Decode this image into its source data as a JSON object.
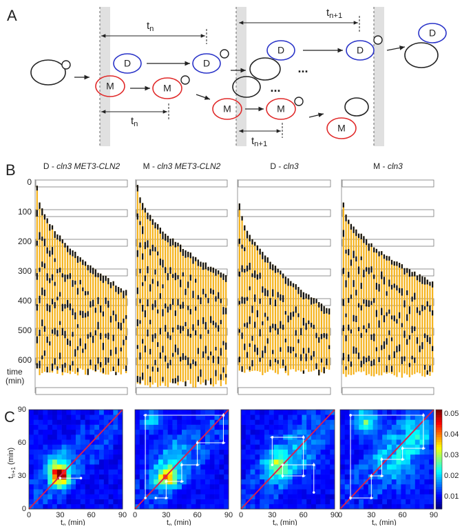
{
  "panel_a": {
    "label": "A",
    "intervals": [
      {
        "base": "t",
        "sub": "n"
      },
      {
        "base": "t",
        "sub": "n+1"
      },
      {
        "base": "t",
        "sub": "n"
      },
      {
        "base": "t",
        "sub": "n+1"
      }
    ],
    "daughter_labels": [
      "D",
      "D",
      "D",
      "D",
      "D"
    ],
    "mother_labels": [
      "M",
      "M",
      "M",
      "M",
      "M"
    ],
    "continuation_marks": [
      "...",
      "..."
    ]
  },
  "panel_b": {
    "label": "B",
    "strains": [
      {
        "prefix": "D - ",
        "italic": "cln3 MET3-CLN2"
      },
      {
        "prefix": "M - ",
        "italic": "cln3 MET3-CLN2"
      },
      {
        "prefix": "D - ",
        "italic": "cln3"
      },
      {
        "prefix": "M - ",
        "italic": "cln3"
      }
    ],
    "yticks": [
      "0",
      "100",
      "200",
      "300",
      "400",
      "500",
      "600"
    ],
    "ylabel": [
      "time",
      "(min)"
    ]
  },
  "panel_c": {
    "label": "C",
    "xticks": [
      "0",
      "30",
      "60",
      "90"
    ],
    "yticks": [
      "0",
      "30",
      "60",
      "90"
    ],
    "xlabel": {
      "base": "t",
      "sub": "n",
      "unit": " (min)"
    },
    "ylabel": {
      "base": "t",
      "sub": "n+1",
      "unit": " (min)"
    },
    "colorbar_ticks": [
      "0.05",
      "0.04",
      "0.03",
      "0.02",
      "0.01"
    ]
  }
}
